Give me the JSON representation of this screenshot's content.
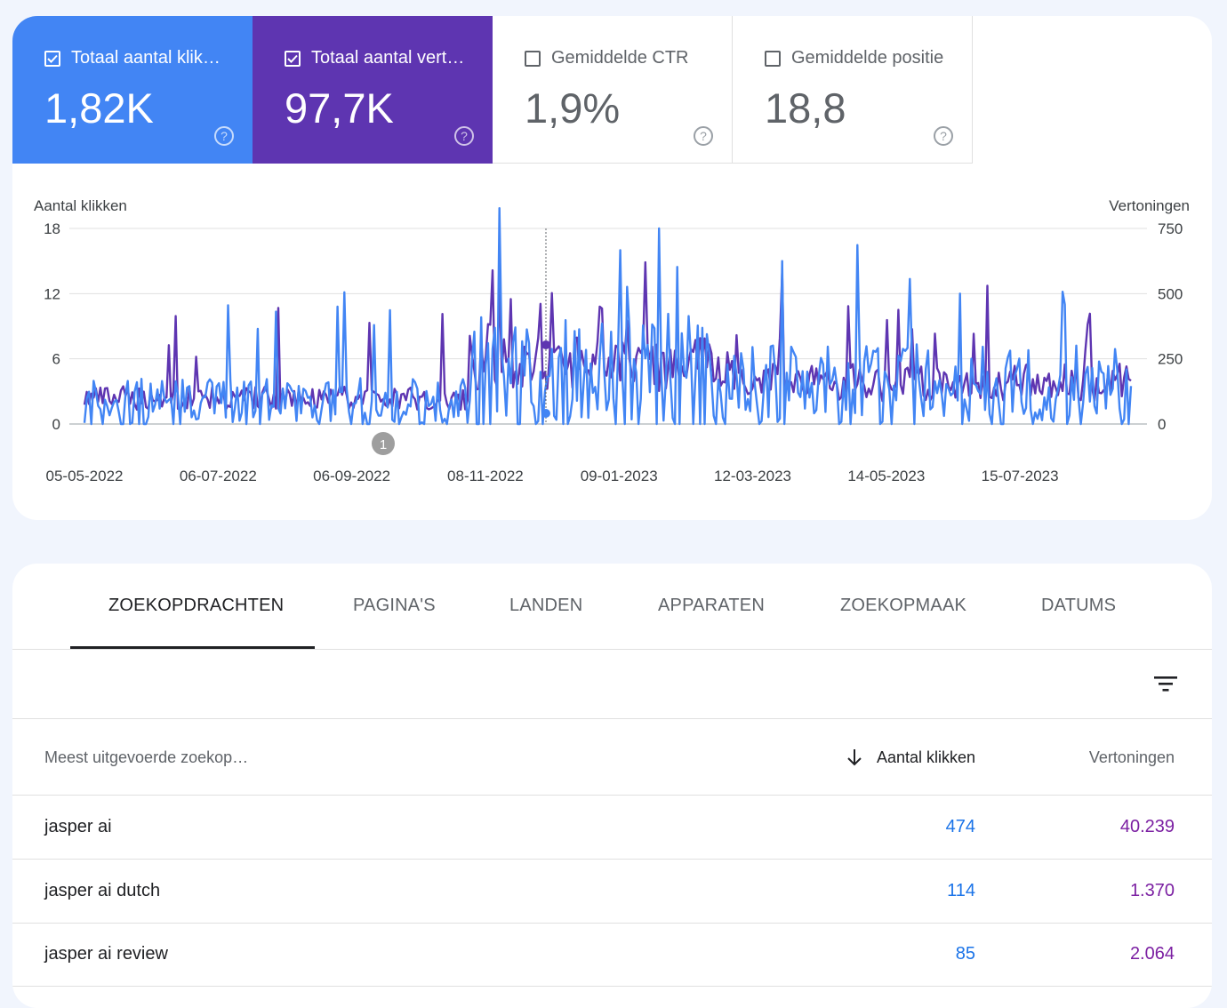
{
  "metrics": [
    {
      "label": "Totaal aantal klik…",
      "value": "1,82K",
      "checked": true,
      "color": "#4285f4"
    },
    {
      "label": "Totaal aantal vert…",
      "value": "97,7K",
      "checked": true,
      "color": "#5e35b1"
    },
    {
      "label": "Gemiddelde CTR",
      "value": "1,9%",
      "checked": false
    },
    {
      "label": "Gemiddelde positie",
      "value": "18,8",
      "checked": false
    }
  ],
  "chart_data": {
    "type": "line",
    "left_axis_label": "Aantal klikken",
    "right_axis_label": "Vertoningen",
    "left_ticks": [
      "0",
      "6",
      "12",
      "18"
    ],
    "right_ticks": [
      "0",
      "250",
      "500",
      "750"
    ],
    "left_ylim": [
      0,
      18
    ],
    "right_ylim": [
      0,
      750
    ],
    "x_ticks": [
      "05-05-2022",
      "06-07-2022",
      "06-09-2022",
      "08-11-2022",
      "09-01-2023",
      "12-03-2023",
      "14-05-2023",
      "15-07-2023"
    ],
    "annotation": "1",
    "series": [
      {
        "name": "Aantal klikken",
        "color": "#4285f4",
        "axis": "left"
      },
      {
        "name": "Vertoningen",
        "color": "#5e35b1",
        "axis": "right"
      }
    ]
  },
  "tabs": [
    "ZOEKOPDRACHTEN",
    "PAGINA'S",
    "LANDEN",
    "APPARATEN",
    "ZOEKOPMAAK",
    "DATUMS"
  ],
  "table": {
    "headers": {
      "query": "Meest uitgevoerde zoekop…",
      "clicks": "Aantal klikken",
      "impressions": "Vertoningen"
    },
    "rows": [
      {
        "query": "jasper ai",
        "clicks": "474",
        "impressions": "40.239"
      },
      {
        "query": "jasper ai dutch",
        "clicks": "114",
        "impressions": "1.370"
      },
      {
        "query": "jasper ai review",
        "clicks": "85",
        "impressions": "2.064"
      }
    ]
  }
}
